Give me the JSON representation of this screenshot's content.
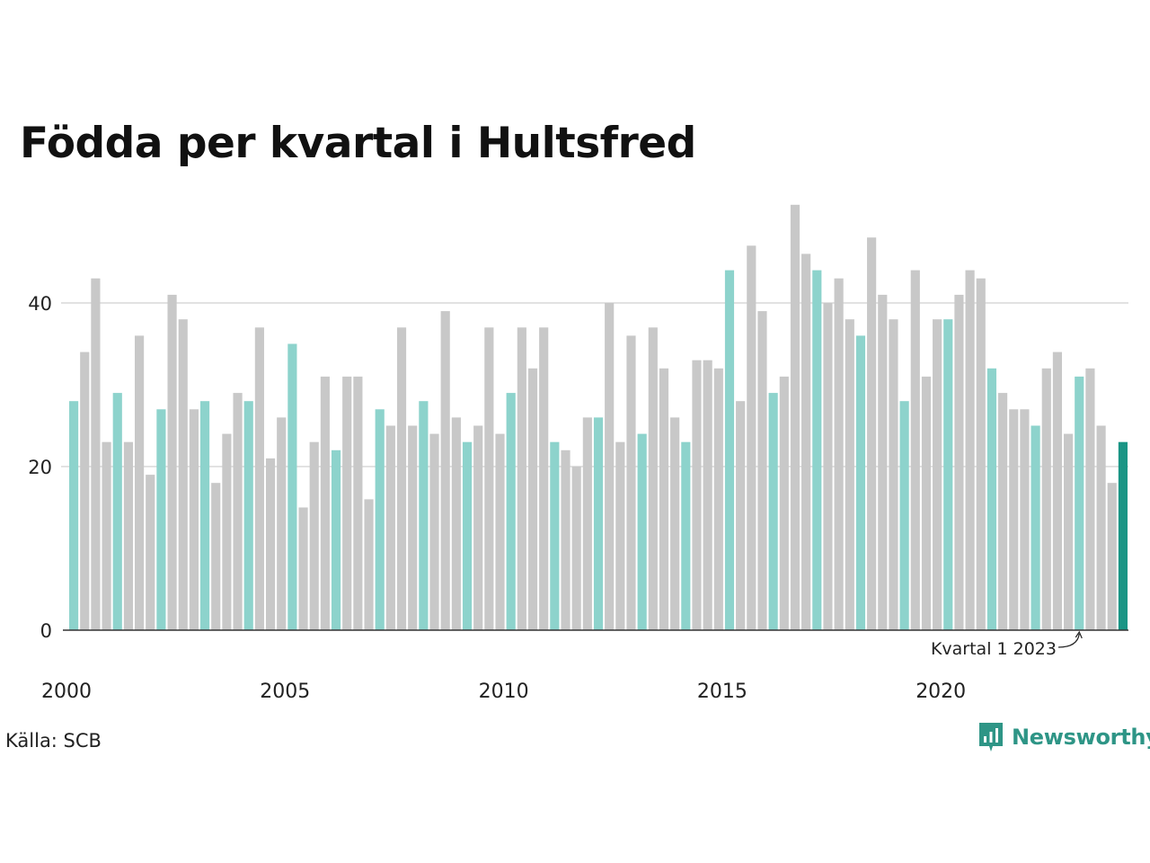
{
  "title": "Födda per kvartal i Hultsfred",
  "source": "Källa: SCB",
  "brand": "Newsworthy",
  "colors": {
    "q1": "#8dd3cc",
    "other": "#c8c8c8",
    "latest": "#1a9585",
    "grid": "#e2e2e2",
    "axis": "#333333",
    "brand": "#2e9586"
  },
  "chart_data": {
    "type": "bar",
    "title": "Födda per kvartal i Hultsfred",
    "xlabel": "",
    "ylabel": "",
    "ylim": [
      0,
      52
    ],
    "yticks": [
      0,
      20,
      40
    ],
    "grid": true,
    "start_year": 2000,
    "xtick_labels": [
      "2000",
      "2005",
      "2010",
      "2015",
      "2020"
    ],
    "annotation": "Kvartal 1 2023",
    "series": [
      {
        "values": [
          28,
          34,
          43,
          23,
          29,
          23,
          36,
          19,
          27,
          41,
          38,
          27,
          28,
          18,
          24,
          29,
          28,
          37,
          21,
          26,
          35,
          15,
          23,
          31,
          22,
          31,
          31,
          16,
          27,
          25,
          37,
          25,
          28,
          24,
          39,
          26,
          23,
          25,
          37,
          24,
          29,
          37,
          32,
          37,
          23,
          22,
          20,
          26,
          26,
          40,
          23,
          36,
          24,
          37,
          32,
          26,
          23,
          33,
          33,
          32,
          44,
          28,
          47,
          39,
          29,
          31,
          52,
          46,
          44,
          40,
          43,
          38,
          36,
          48,
          41,
          38,
          28,
          44,
          31,
          38,
          38,
          41,
          44,
          43,
          32,
          29,
          27,
          27,
          25,
          32,
          34,
          24,
          31,
          32,
          25,
          18,
          23
        ]
      }
    ]
  }
}
